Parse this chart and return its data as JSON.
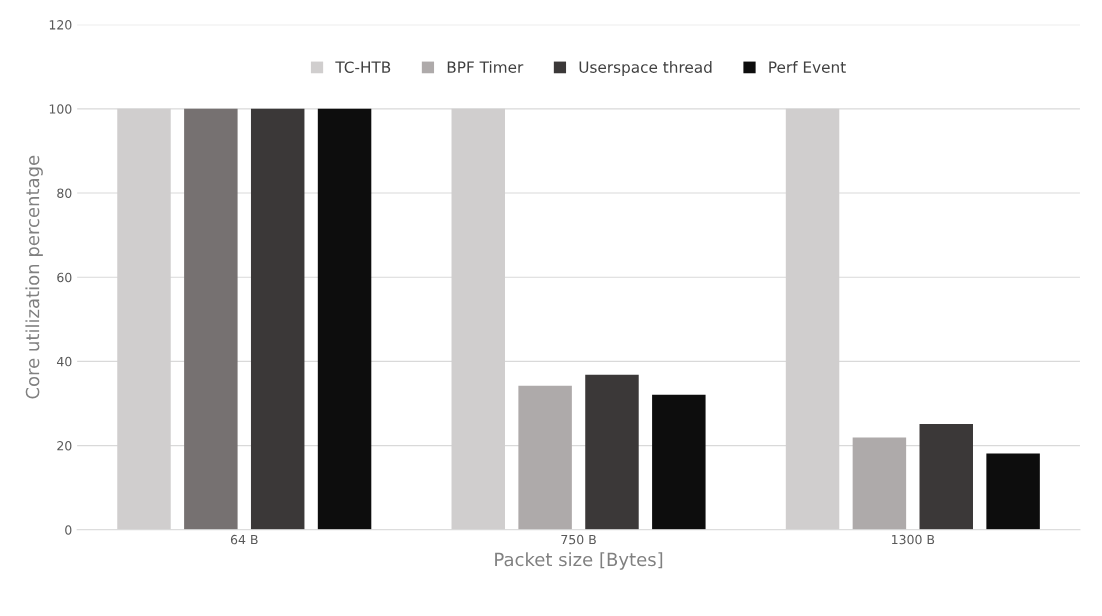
{
  "chart_data": {
    "type": "bar",
    "xlabel": "Packet size [Bytes]",
    "ylabel": "Core utilization percentage",
    "categories": [
      "64 B",
      "750 B",
      "1300 B"
    ],
    "series": [
      {
        "name": "TC-HTB",
        "color": "#d0cece",
        "values": [
          100,
          100,
          100
        ]
      },
      {
        "name": "BPF Timer",
        "color": "#aeaaaa",
        "colors": [
          "#767171",
          "#aeaaaa",
          "#aeaaaa"
        ],
        "values": [
          100,
          34.2,
          21.9
        ]
      },
      {
        "name": "Userspace thread",
        "color": "#3b3838",
        "values": [
          100,
          36.8,
          25.1
        ]
      },
      {
        "name": "Perf Event",
        "color": "#0d0d0d",
        "values": [
          100,
          32.1,
          18.1
        ]
      }
    ],
    "ylim": [
      0,
      120
    ],
    "yticks": [
      0,
      20,
      40,
      60,
      80,
      100,
      120
    ],
    "grid": "y",
    "legend": "top"
  }
}
